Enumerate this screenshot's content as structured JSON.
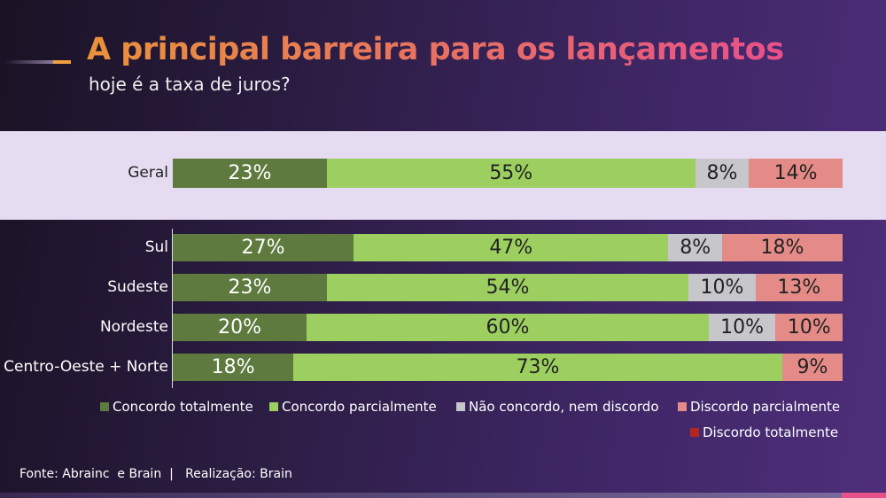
{
  "title": "A principal barreira para os lançamentos",
  "subtitle": "hoje é a taxa de juros?",
  "footer": "Fonte: Abrainc  e Brain  |   Realização: Brain",
  "chart_data": {
    "type": "bar",
    "orientation": "horizontal-stacked-100",
    "categories": [
      "Geral",
      "Sul",
      "Sudeste",
      "Nordeste",
      "Centro-Oeste + Norte"
    ],
    "series": [
      {
        "name": "Concordo totalmente",
        "color": "#5e7a3e",
        "values": [
          23,
          27,
          23,
          20,
          18
        ]
      },
      {
        "name": "Concordo parcialmente",
        "color": "#9ccf60",
        "values": [
          55,
          47,
          54,
          60,
          73
        ]
      },
      {
        "name": "Não concordo, nem discordo",
        "color": "#c6c6cb",
        "values": [
          8,
          8,
          10,
          10,
          0
        ]
      },
      {
        "name": "Discordo parcialmente",
        "color": "#e48b87",
        "values": [
          14,
          18,
          13,
          10,
          9
        ]
      },
      {
        "name": "Discordo totalmente",
        "color": "#b3261e",
        "values": [
          0,
          0,
          0,
          0,
          0
        ]
      }
    ],
    "unit": "%",
    "legend": "bottom"
  }
}
